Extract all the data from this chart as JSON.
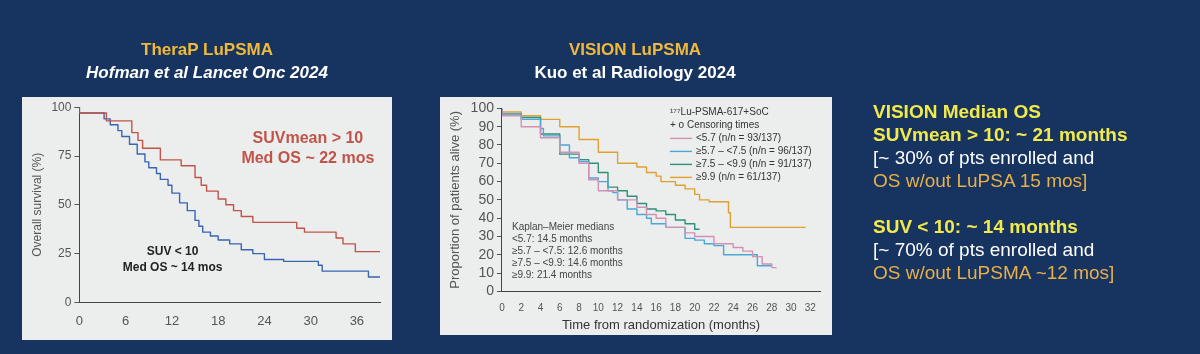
{
  "chart_data": [
    {
      "type": "step",
      "title": "TheraP LuPSMA",
      "subtitle": "Hofman et al Lancet Onc 2024",
      "ylabel": "Overall survival (%)",
      "xlim": [
        0,
        39
      ],
      "xticks": [
        0,
        6,
        12,
        18,
        24,
        30,
        36
      ],
      "ylim": [
        0,
        100
      ],
      "yticks": [
        0,
        25,
        50,
        75,
        100
      ],
      "grid": false,
      "legend": false,
      "marker": "none",
      "annotations": [
        "SUVmean > 10",
        "Med OS ~ 22 mos",
        "SUV < 10",
        "Med OS ~ 14 mos"
      ],
      "series": [
        {
          "color": "#c0544a",
          "x": [
            0,
            3.5,
            6.8,
            7.6,
            8.2,
            10.5,
            13.2,
            15,
            15.8,
            16.5,
            18,
            19,
            20,
            21,
            22.5,
            28.2,
            29.2,
            33.3,
            34.2,
            35.8,
            36.3,
            39
          ],
          "values": [
            100,
            97,
            93,
            87,
            83,
            79,
            73,
            70,
            64,
            60,
            57,
            53,
            50,
            47,
            44,
            41,
            38,
            36,
            33,
            30,
            26,
            26
          ]
        },
        {
          "color": "#3a64b4",
          "x": [
            0,
            3.2,
            4,
            5,
            5.5,
            6.5,
            7.5,
            8.5,
            9,
            10,
            10.5,
            11.5,
            12,
            13,
            14,
            15,
            15.5,
            16,
            17,
            18,
            19.5,
            21,
            22.5,
            24,
            26.5,
            31,
            31.5,
            37.5,
            39
          ],
          "values": [
            100,
            97,
            94,
            91,
            88,
            85,
            81,
            76,
            72,
            69,
            66,
            63,
            60,
            56,
            51,
            47,
            42,
            39,
            36,
            34,
            32,
            30,
            27,
            25,
            22,
            21,
            19,
            16,
            13
          ]
        }
      ]
    },
    {
      "type": "step",
      "title": "VISION LuPSMA",
      "subtitle": "Kuo et al Radiology 2024",
      "xlabel": "Time from randomization (months)",
      "ylabel": "Proportion of patients alive (%)",
      "xlim": [
        0,
        33
      ],
      "xticks": [
        0,
        2,
        4,
        6,
        8,
        10,
        12,
        14,
        16,
        18,
        20,
        22,
        24,
        26,
        28,
        30,
        32
      ],
      "ylim": [
        0,
        100
      ],
      "yticks": [
        0,
        10,
        20,
        30,
        40,
        50,
        60,
        70,
        80,
        90,
        100
      ],
      "grid": false,
      "legend": "top right",
      "marker": "none",
      "legend_title": "¹⁷⁷Lu-PSMA-617+SoC",
      "annotations": [
        "+ o Censoring times",
        "Kaplan–Meier medians",
        "<5.7: 14.5 months",
        "≥5.7 – <7.5: 12.6 months",
        "≥7.5 – <9.9: 14.6 months",
        "≥9.9: 21.4 months"
      ],
      "series": [
        {
          "name": "<5.7 (n/n = 93/137)",
          "color": "#d48fb4",
          "x": [
            0,
            2,
            4,
            6,
            8,
            9,
            10,
            12,
            14,
            15,
            16,
            17,
            19,
            20,
            22,
            24,
            25,
            26,
            27,
            28,
            28.5
          ],
          "values": [
            100,
            96,
            90,
            84,
            76,
            70,
            61,
            55,
            50,
            46,
            42,
            40,
            35,
            32,
            30,
            26,
            24,
            22,
            19,
            15,
            13
          ]
        },
        {
          "name": "≥5.7 – <7.5 (n/n = 96/137)",
          "color": "#4aa7d6",
          "x": [
            0,
            2,
            4,
            4.3,
            6,
            7,
            8,
            9,
            10,
            11,
            11.5,
            12,
            13,
            14,
            15,
            15.5,
            17,
            19,
            20,
            21,
            22,
            23,
            25.5,
            26.5,
            27,
            28
          ],
          "values": [
            100,
            97,
            94,
            89,
            85,
            80,
            73,
            71,
            62,
            60,
            55,
            54,
            50,
            45,
            42,
            40,
            37,
            35,
            29,
            28,
            26,
            25,
            20,
            20,
            14,
            14
          ]
        },
        {
          "name": "≥7.5 – <9.9 (n/n = 91/137)",
          "color": "#2e8f7a",
          "x": [
            0,
            2,
            4,
            6,
            8,
            9,
            10,
            11,
            12,
            13,
            14,
            15,
            16,
            17,
            18,
            19,
            20,
            20.5
          ],
          "values": [
            100,
            97,
            95,
            86,
            75,
            72,
            70,
            65,
            57,
            55,
            52,
            48,
            45,
            44,
            42,
            39,
            37,
            34
          ]
        },
        {
          "name": "≥9.9 (n/n = 61/137)",
          "color": "#e0a030",
          "x": [
            0,
            2,
            4,
            6,
            8,
            10,
            12,
            14,
            15,
            16,
            16.5,
            18,
            19,
            20,
            20.5,
            21.5,
            23.5,
            23.7,
            24.7,
            31.5
          ],
          "values": [
            100,
            98,
            96,
            94,
            90,
            83,
            76,
            70,
            68,
            65,
            63,
            60,
            58,
            56,
            53,
            50,
            49,
            43,
            35,
            35
          ]
        }
      ]
    },
    {
      "type": "other",
      "title": "VISION Median OS",
      "annotations": [
        "SUVmean > 10: ~ 21 months",
        "[~ 30% of pts enrolled and",
        "OS w/out LuPSA 15 mos]",
        "SUV < 10: ~ 14 months",
        "[~ 70% of pts enrolled and",
        "OS w/out LuPSMA ~12 mos]"
      ]
    }
  ]
}
